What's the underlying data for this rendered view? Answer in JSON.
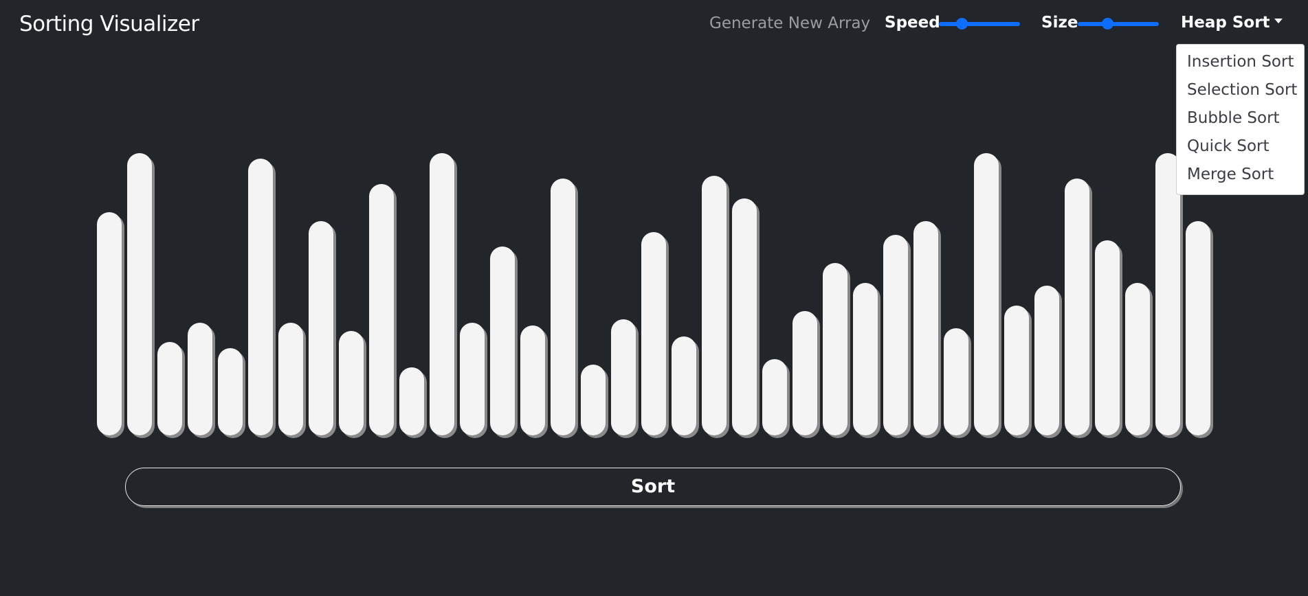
{
  "navbar": {
    "brand": "Sorting Visualizer",
    "generate_label": "Generate New Array",
    "speed_label": "Speed",
    "speed_value": 0.25,
    "size_label": "Size",
    "size_value": 0.35,
    "algorithm_selected": "Heap Sort",
    "accent_color": "#0d6efd"
  },
  "dropdown": {
    "options": [
      "Insertion Sort",
      "Selection Sort",
      "Bubble Sort",
      "Quick Sort",
      "Merge Sort"
    ]
  },
  "array": {
    "max_value": 100,
    "values": [
      79,
      100,
      33,
      40,
      31,
      98,
      40,
      76,
      37,
      89,
      24,
      100,
      40,
      67,
      39,
      91,
      25,
      41,
      72,
      35,
      92,
      84,
      27,
      44,
      61,
      54,
      71,
      76,
      38,
      100,
      46,
      53,
      91,
      69,
      54,
      100,
      76
    ]
  },
  "actions": {
    "sort_label": "Sort"
  },
  "colors": {
    "background": "#22252a",
    "bar": "#f4f4f4",
    "bar_shadow": "#8a8a8a"
  }
}
